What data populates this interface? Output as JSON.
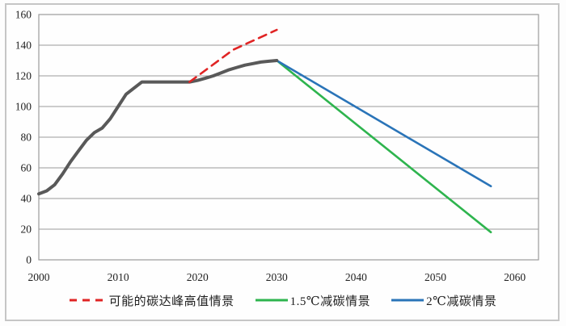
{
  "chart_data": {
    "type": "line",
    "title": "",
    "xlabel": "",
    "ylabel": "",
    "x_range": [
      2000,
      2063
    ],
    "y_range": [
      0,
      160
    ],
    "x_ticks": [
      2000,
      2010,
      2020,
      2030,
      2040,
      2050,
      2060
    ],
    "y_ticks": [
      0,
      20,
      40,
      60,
      80,
      100,
      120,
      140,
      160
    ],
    "grid": true,
    "legend_position": "bottom",
    "styles": {
      "grid_color": "#9b9b9b",
      "plot_border_color": "#9b9b9b",
      "tick_label_color": "#1f1f1f",
      "plot_background": "#fefefe"
    },
    "series": [
      {
        "id": "historical-emissions",
        "in_legend": false,
        "color": "#595959",
        "width": 4,
        "dashed": false,
        "points": [
          [
            2000,
            43
          ],
          [
            2001,
            45
          ],
          [
            2002,
            49
          ],
          [
            2003,
            56
          ],
          [
            2004,
            64
          ],
          [
            2005,
            71
          ],
          [
            2006,
            78
          ],
          [
            2007,
            83
          ],
          [
            2008,
            86
          ],
          [
            2009,
            92
          ],
          [
            2010,
            100
          ],
          [
            2011,
            108
          ],
          [
            2012,
            112
          ],
          [
            2013,
            116
          ],
          [
            2014,
            116
          ],
          [
            2015,
            116
          ],
          [
            2016,
            116
          ],
          [
            2017,
            116
          ],
          [
            2018,
            116
          ],
          [
            2019,
            116
          ],
          [
            2020,
            117
          ],
          [
            2021,
            118.5
          ],
          [
            2022,
            120
          ],
          [
            2023,
            122
          ],
          [
            2024,
            124
          ],
          [
            2025,
            125.5
          ],
          [
            2026,
            127
          ],
          [
            2027,
            128
          ],
          [
            2028,
            129
          ],
          [
            2029,
            129.5
          ],
          [
            2030,
            130
          ]
        ]
      },
      {
        "id": "peak-high-scenario",
        "in_legend": true,
        "label": "可能的碳达峰高值情景",
        "color": "#e02424",
        "width": 2.6,
        "dashed": true,
        "points": [
          [
            2019,
            116
          ],
          [
            2024.5,
            137
          ],
          [
            2030,
            150
          ]
        ]
      },
      {
        "id": "deg15-reduction-scenario",
        "in_legend": true,
        "label": "1.5℃减碳情景",
        "color": "#2eb44e",
        "width": 2.6,
        "dashed": false,
        "points": [
          [
            2030,
            130
          ],
          [
            2057,
            18
          ]
        ]
      },
      {
        "id": "deg2-reduction-scenario",
        "in_legend": true,
        "label": "2℃减碳情景",
        "color": "#2a74b8",
        "width": 2.6,
        "dashed": false,
        "points": [
          [
            2030,
            130
          ],
          [
            2057,
            48
          ]
        ]
      }
    ]
  },
  "legend": {
    "items": [
      {
        "label": "可能的碳达峰高值情景",
        "color": "#e02424",
        "dashed": true
      },
      {
        "label": "1.5℃减碳情景",
        "color": "#2eb44e",
        "dashed": false
      },
      {
        "label": "2℃减碳情景",
        "color": "#2a74b8",
        "dashed": false
      }
    ]
  }
}
